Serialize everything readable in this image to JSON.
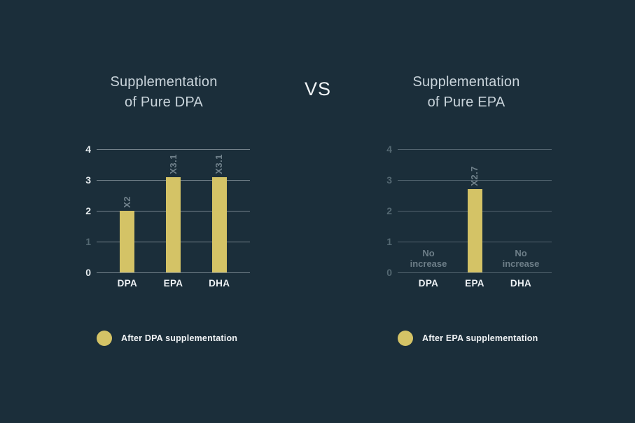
{
  "vs_label": "VS",
  "colors": {
    "background": "#1b2e3a",
    "bar_fill": "#d4c366",
    "title_text": "#c9d4db",
    "vs_text": "#eff3f5",
    "grid_bright": "#74828b",
    "grid_dim": "#53646f",
    "tick_bright": "#e5ebee",
    "tick_dim": "#546872",
    "bar_label_text": "#70818b",
    "annotation_text": "#6d7e88",
    "category_text": "#eef2f5",
    "legend_text": "#f0f3f5"
  },
  "chart_data": [
    {
      "type": "bar",
      "title": "Supplementation of Pure DPA",
      "title_lines": [
        "Supplementation",
        "of Pure DPA"
      ],
      "categories": [
        "DPA",
        "EPA",
        "DHA"
      ],
      "values": [
        2,
        3.1,
        3.1
      ],
      "bar_labels": [
        "X2",
        "X3.1",
        "X3.1"
      ],
      "annotations": [
        null,
        null,
        null
      ],
      "ylim": [
        0,
        4
      ],
      "yticks": [
        4,
        3,
        2,
        1,
        0
      ],
      "dim_yticks": [
        1
      ],
      "grid": true,
      "axis_style": "bright",
      "legend": {
        "label": "After DPA supplementation",
        "position": "bottom-left"
      }
    },
    {
      "type": "bar",
      "title": "Supplementation of Pure EPA",
      "title_lines": [
        "Supplementation",
        "of Pure EPA"
      ],
      "categories": [
        "DPA",
        "EPA",
        "DHA"
      ],
      "values": [
        null,
        2.7,
        null
      ],
      "bar_labels": [
        null,
        "X2.7",
        null
      ],
      "annotations": [
        "No increase",
        null,
        "No increase"
      ],
      "ylim": [
        0,
        4
      ],
      "yticks": [
        4,
        3,
        2,
        1,
        0
      ],
      "dim_yticks": [
        4,
        3,
        2,
        1,
        0
      ],
      "grid": true,
      "axis_style": "dim",
      "legend": {
        "label": "After EPA supplementation",
        "position": "bottom-left"
      }
    }
  ]
}
